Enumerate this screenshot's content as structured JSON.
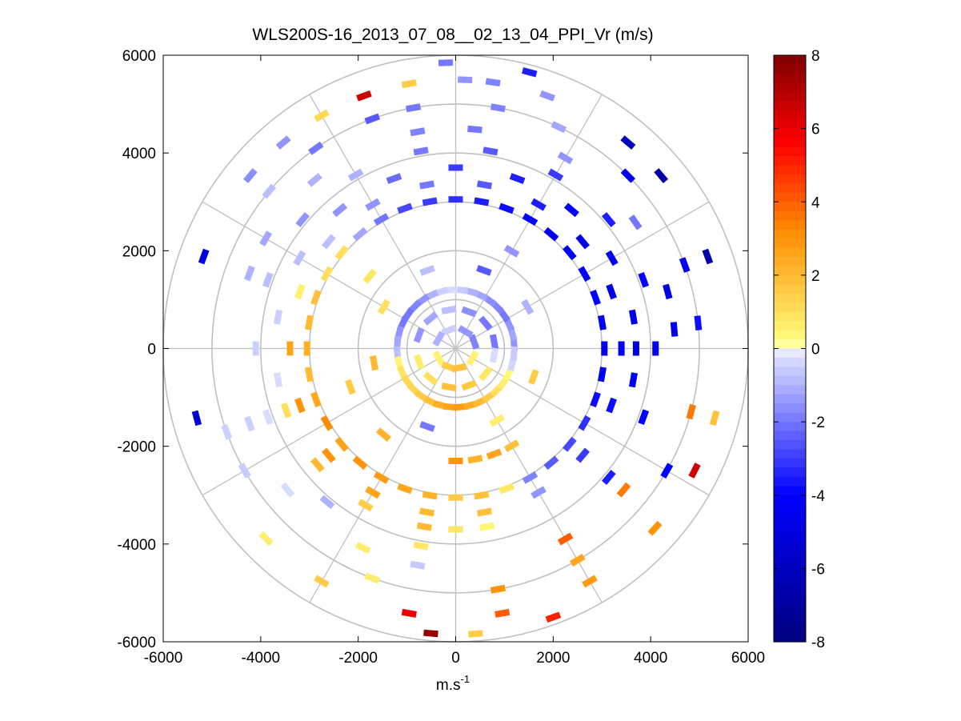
{
  "chart_data": {
    "type": "ppi-polar-scatter",
    "title": "WLS200S-16_2013_07_08__02_13_04_PPI_Vr (m/s)",
    "xlabel": "m.s",
    "xlabel_superscript": "-1",
    "ylabel": "",
    "xlim": [
      -6000,
      6000
    ],
    "ylim": [
      -6000,
      6000
    ],
    "xticks": [
      -6000,
      -4000,
      -2000,
      0,
      2000,
      4000,
      6000
    ],
    "yticks": [
      6000,
      4000,
      2000,
      0,
      -2000,
      -4000,
      -6000
    ],
    "xtick_labels": [
      "-6000",
      "-4000",
      "-2000",
      "0",
      "2000",
      "4000",
      "6000"
    ],
    "ytick_labels": [
      "6000",
      "4000",
      "2000",
      "0",
      "-2000",
      "-4000",
      "-6000"
    ],
    "polar_grid": {
      "ring_radii_m": [
        1000,
        2000,
        3000,
        4000,
        5000,
        6000
      ],
      "spoke_angles_deg": [
        0,
        30,
        60,
        90,
        120,
        150,
        180,
        210,
        240,
        270,
        300,
        330
      ]
    },
    "colorbar": {
      "min": -8,
      "max": 8,
      "tick_values": [
        8,
        6,
        4,
        2,
        0,
        -2,
        -4,
        -6,
        -8
      ],
      "tick_labels": [
        "8",
        "6",
        "4",
        "2",
        "0",
        "-2",
        "-4",
        "-6",
        "-8"
      ],
      "colormap": [
        "#00007f",
        "#0000ff",
        "#e0e4ff",
        "#ffffff",
        "#ffff80",
        "#ff8c00",
        "#ff0000",
        "#7f0000"
      ]
    },
    "bins_r_theta_vr": [
      [
        1200,
        5,
        -1.5
      ],
      [
        1200,
        15,
        -1.2
      ],
      [
        1200,
        25,
        -1.5
      ],
      [
        1200,
        35,
        -2.0
      ],
      [
        1200,
        45,
        -1.8
      ],
      [
        1200,
        55,
        -1.6
      ],
      [
        1200,
        65,
        -1.2
      ],
      [
        1200,
        75,
        -1.0
      ],
      [
        1200,
        85,
        -0.6
      ],
      [
        1200,
        95,
        -0.3
      ],
      [
        1200,
        105,
        -0.5
      ],
      [
        1200,
        115,
        -1.0
      ],
      [
        1200,
        125,
        -1.5
      ],
      [
        1200,
        135,
        -1.8
      ],
      [
        1200,
        145,
        -2.0
      ],
      [
        1200,
        155,
        -2.0
      ],
      [
        1200,
        165,
        -1.5
      ],
      [
        1200,
        175,
        -1.2
      ],
      [
        1200,
        185,
        -0.8
      ],
      [
        1200,
        195,
        0.4
      ],
      [
        1200,
        205,
        0.8
      ],
      [
        1200,
        215,
        1.2
      ],
      [
        1200,
        225,
        1.3
      ],
      [
        1200,
        235,
        1.5
      ],
      [
        1200,
        245,
        1.8
      ],
      [
        1200,
        255,
        2.3
      ],
      [
        1200,
        265,
        2.6
      ],
      [
        1200,
        275,
        2.8
      ],
      [
        1200,
        285,
        2.4
      ],
      [
        1200,
        295,
        2.0
      ],
      [
        1200,
        305,
        1.5
      ],
      [
        1200,
        315,
        1.0
      ],
      [
        1200,
        325,
        0.6
      ],
      [
        1200,
        335,
        0.3
      ],
      [
        1200,
        345,
        -0.4
      ],
      [
        1200,
        355,
        -0.6
      ],
      [
        800,
        10,
        -2.0
      ],
      [
        800,
        40,
        -2.0
      ],
      [
        800,
        70,
        -1.6
      ],
      [
        800,
        100,
        -0.8
      ],
      [
        800,
        130,
        -1.2
      ],
      [
        800,
        160,
        -1.5
      ],
      [
        800,
        200,
        0.6
      ],
      [
        800,
        230,
        1.0
      ],
      [
        800,
        260,
        1.8
      ],
      [
        800,
        290,
        1.6
      ],
      [
        800,
        320,
        0.8
      ],
      [
        800,
        350,
        -0.3
      ],
      [
        400,
        20,
        -1.8
      ],
      [
        400,
        60,
        -1.5
      ],
      [
        400,
        110,
        -0.5
      ],
      [
        400,
        150,
        -1.0
      ],
      [
        400,
        210,
        0.5
      ],
      [
        400,
        250,
        1.5
      ],
      [
        400,
        280,
        1.8
      ],
      [
        400,
        330,
        0.5
      ],
      [
        1700,
        30,
        -1.0
      ],
      [
        1700,
        70,
        -2.5
      ],
      [
        1700,
        110,
        -0.8
      ],
      [
        1700,
        150,
        1.0
      ],
      [
        1700,
        190,
        2.0
      ],
      [
        1700,
        250,
        -2.0
      ],
      [
        1700,
        300,
        0.6
      ],
      [
        1700,
        340,
        1.5
      ],
      [
        2300,
        300,
        1.8
      ],
      [
        2300,
        290,
        2.5
      ],
      [
        2300,
        280,
        2.2
      ],
      [
        2300,
        270,
        3.0
      ],
      [
        2300,
        60,
        -1.5
      ],
      [
        2300,
        140,
        0.8
      ],
      [
        2300,
        200,
        1.5
      ],
      [
        2300,
        230,
        2.2
      ],
      [
        3050,
        20,
        -4.0
      ],
      [
        3050,
        10,
        -4.2
      ],
      [
        3050,
        0,
        -4.5
      ],
      [
        3050,
        350,
        -4.2
      ],
      [
        3050,
        340,
        -3.8
      ],
      [
        3050,
        330,
        -3.2
      ],
      [
        3050,
        320,
        -2.8
      ],
      [
        3050,
        310,
        -2.5
      ],
      [
        3050,
        300,
        -1.8
      ],
      [
        3050,
        290,
        0.8
      ],
      [
        3050,
        280,
        1.8
      ],
      [
        3050,
        270,
        1.5
      ],
      [
        3050,
        260,
        2.2
      ],
      [
        3050,
        250,
        2.5
      ],
      [
        3050,
        240,
        2.8
      ],
      [
        3050,
        230,
        3.0
      ],
      [
        3050,
        220,
        2.6
      ],
      [
        3050,
        210,
        3.2
      ],
      [
        3050,
        200,
        2.5
      ],
      [
        3050,
        190,
        2.0
      ],
      [
        3050,
        180,
        2.3
      ],
      [
        3050,
        170,
        2.0
      ],
      [
        3050,
        160,
        1.8
      ],
      [
        3050,
        150,
        1.0
      ],
      [
        3050,
        140,
        1.0
      ],
      [
        3050,
        130,
        -1.2
      ],
      [
        3050,
        120,
        -2.0
      ],
      [
        3050,
        110,
        -2.8
      ],
      [
        3050,
        100,
        -3.0
      ],
      [
        3050,
        90,
        -3.2
      ],
      [
        3050,
        80,
        -3.5
      ],
      [
        3050,
        70,
        -3.8
      ],
      [
        3050,
        60,
        -4.0
      ],
      [
        3050,
        50,
        -4.5
      ],
      [
        3050,
        40,
        -4.3
      ],
      [
        3050,
        30,
        -4.2
      ],
      [
        3400,
        180,
        2.5
      ],
      [
        3400,
        200,
        3.0
      ],
      [
        3400,
        220,
        3.0
      ],
      [
        3400,
        240,
        2.5
      ],
      [
        3400,
        260,
        2.0
      ],
      [
        3400,
        280,
        1.8
      ],
      [
        3400,
        300,
        -1.5
      ],
      [
        3400,
        320,
        -3.0
      ],
      [
        3400,
        340,
        -3.8
      ],
      [
        3400,
        0,
        -4.5
      ],
      [
        3400,
        20,
        -4.8
      ],
      [
        3400,
        40,
        -4.5
      ],
      [
        3400,
        60,
        -3.5
      ],
      [
        3400,
        80,
        -2.5
      ],
      [
        3400,
        100,
        -2.0
      ],
      [
        3400,
        120,
        -1.5
      ],
      [
        3400,
        140,
        -0.8
      ],
      [
        3400,
        160,
        0.5
      ],
      [
        3700,
        0,
        -5.0
      ],
      [
        3700,
        10,
        -4.8
      ],
      [
        3700,
        350,
        -4.5
      ],
      [
        3700,
        30,
        -4.5
      ],
      [
        3700,
        50,
        -4.0
      ],
      [
        3700,
        70,
        -3.5
      ],
      [
        3700,
        90,
        -3.0
      ],
      [
        3700,
        110,
        -2.2
      ],
      [
        3700,
        130,
        -1.5
      ],
      [
        3700,
        150,
        -0.8
      ],
      [
        3700,
        170,
        -0.5
      ],
      [
        3700,
        190,
        -0.3
      ],
      [
        3700,
        200,
        1.0
      ],
      [
        3700,
        220,
        2.0
      ],
      [
        3700,
        240,
        1.5
      ],
      [
        3700,
        260,
        2.0
      ],
      [
        3700,
        270,
        0.8
      ],
      [
        3700,
        280,
        0.4
      ],
      [
        4100,
        20,
        -4.0
      ],
      [
        4100,
        40,
        -3.5
      ],
      [
        4100,
        60,
        -3.0
      ],
      [
        4100,
        80,
        -2.5
      ],
      [
        4100,
        100,
        -2.0
      ],
      [
        4100,
        120,
        -1.0
      ],
      [
        4100,
        140,
        -1.5
      ],
      [
        4100,
        160,
        -0.8
      ],
      [
        4100,
        180,
        -0.5
      ],
      [
        4100,
        200,
        -0.3
      ],
      [
        4100,
        230,
        -1.0
      ],
      [
        4100,
        260,
        0.8
      ],
      [
        4100,
        320,
        -3.5
      ],
      [
        4100,
        340,
        -4.0
      ],
      [
        4100,
        0,
        -4.5
      ],
      [
        4500,
        5,
        -4.5
      ],
      [
        4500,
        15,
        -5.0
      ],
      [
        4500,
        35,
        -2.0
      ],
      [
        4500,
        60,
        -1.5
      ],
      [
        4500,
        85,
        -2.0
      ],
      [
        4500,
        100,
        -1.8
      ],
      [
        4500,
        130,
        -1.0
      ],
      [
        4500,
        150,
        -1.2
      ],
      [
        4500,
        160,
        -1.0
      ],
      [
        4500,
        200,
        -0.5
      ],
      [
        4500,
        220,
        -0.3
      ],
      [
        4500,
        245,
        0.6
      ],
      [
        4500,
        260,
        -0.6
      ],
      [
        4500,
        300,
        4.0
      ],
      [
        4500,
        320,
        3.5
      ],
      [
        5000,
        6,
        -3.8
      ],
      [
        5000,
        20,
        -4.5
      ],
      [
        5000,
        45,
        -4.5
      ],
      [
        5000,
        65,
        -1.2
      ],
      [
        5000,
        80,
        -1.8
      ],
      [
        5000,
        100,
        -2.0
      ],
      [
        5000,
        110,
        -2.5
      ],
      [
        5000,
        125,
        -2.0
      ],
      [
        5000,
        140,
        -0.8
      ],
      [
        5000,
        200,
        -0.5
      ],
      [
        5000,
        210,
        -0.6
      ],
      [
        5000,
        250,
        0.6
      ],
      [
        5000,
        280,
        3.0
      ],
      [
        5000,
        300,
        2.5
      ],
      [
        5000,
        330,
        -4.0
      ],
      [
        5000,
        345,
        3.5
      ],
      [
        5500,
        20,
        -6.5
      ],
      [
        5500,
        40,
        -6.8
      ],
      [
        5500,
        50,
        -6.0
      ],
      [
        5500,
        70,
        -1.5
      ],
      [
        5500,
        82,
        -1.8
      ],
      [
        5500,
        88,
        -1.5
      ],
      [
        5500,
        100,
        1.5
      ],
      [
        5500,
        110,
        6.5
      ],
      [
        5500,
        120,
        1.2
      ],
      [
        5500,
        130,
        -1.5
      ],
      [
        5500,
        140,
        -1.6
      ],
      [
        5500,
        160,
        -5.0
      ],
      [
        5500,
        195,
        -5.5
      ],
      [
        5500,
        225,
        0.6
      ],
      [
        5500,
        240,
        1.5
      ],
      [
        5500,
        260,
        6.0
      ],
      [
        5500,
        280,
        4.0
      ],
      [
        5500,
        300,
        2.8
      ],
      [
        5500,
        318,
        3.0
      ],
      [
        5500,
        333,
        6.5
      ],
      [
        5500,
        345,
        1.8
      ],
      [
        5850,
        75,
        -3.5
      ],
      [
        5850,
        92,
        -2.0
      ],
      [
        5850,
        265,
        7.5
      ],
      [
        5850,
        274,
        1.5
      ],
      [
        5850,
        290,
        5.0
      ]
    ]
  }
}
